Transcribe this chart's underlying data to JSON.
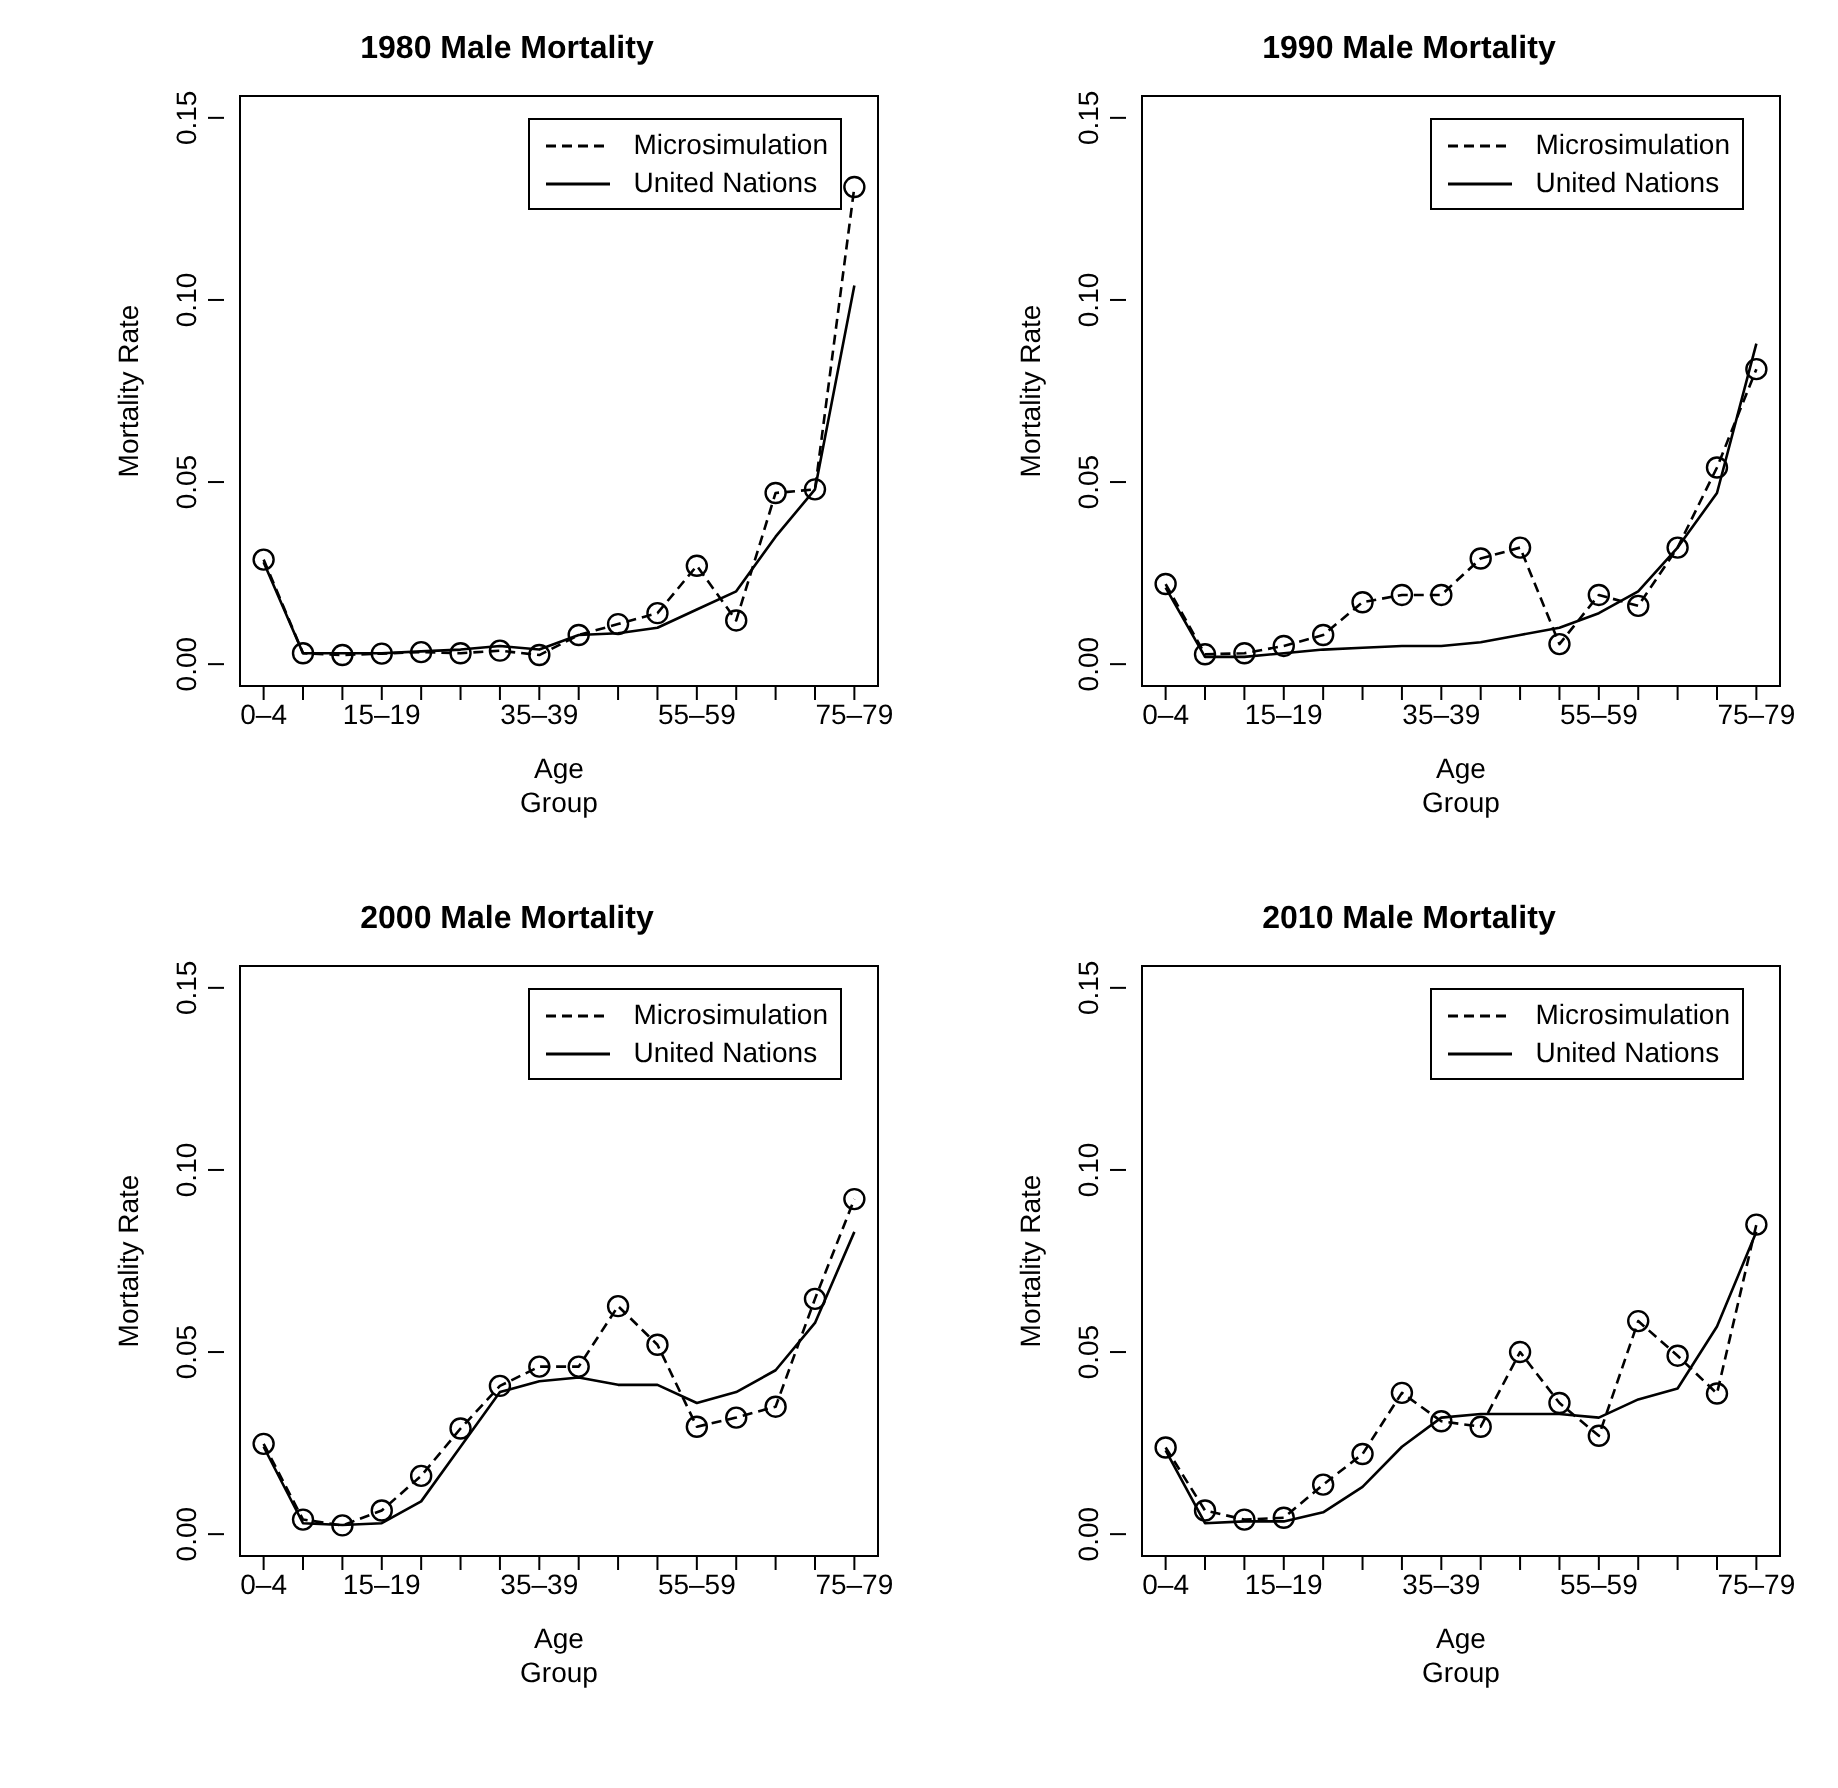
{
  "chart_data": [
    {
      "type": "line",
      "title": "1980 Male Mortality",
      "xlabel": "Age\nGroup",
      "ylabel": "Mortality Rate",
      "categories": [
        "0–4",
        null,
        null,
        "15–19",
        null,
        null,
        null,
        "35–39",
        null,
        null,
        null,
        "55–59",
        null,
        null,
        null,
        "75–79"
      ],
      "ylim": [
        -0.006,
        0.156
      ],
      "yticks": [
        {
          "value": 0,
          "label": "0.00"
        },
        {
          "value": 0.05,
          "label": "0.05"
        },
        {
          "value": 0.1,
          "label": "0.10"
        },
        {
          "value": 0.15,
          "label": "0.15"
        }
      ],
      "legend": "top right",
      "series": [
        {
          "name": "Microsimulation",
          "color": "#000000",
          "line_style": "dashed",
          "marker": "circle",
          "values": [
            0.0287,
            0.003,
            0.0025,
            0.0029,
            0.0033,
            0.003,
            0.0037,
            0.0025,
            0.008,
            0.011,
            0.014,
            0.027,
            0.012,
            0.047,
            0.048,
            0.131
          ]
        },
        {
          "name": "United Nations",
          "color": "#000000",
          "line_style": "solid",
          "marker": "none",
          "values": [
            0.028,
            0.003,
            0.003,
            0.003,
            0.0035,
            0.004,
            0.005,
            0.004,
            0.008,
            0.0085,
            0.01,
            0.015,
            0.02,
            0.035,
            0.048,
            0.104
          ]
        }
      ]
    },
    {
      "type": "line",
      "title": "1990 Male Mortality",
      "xlabel": "Age\nGroup",
      "ylabel": "Mortality Rate",
      "categories": [
        "0–4",
        null,
        null,
        "15–19",
        null,
        null,
        null,
        "35–39",
        null,
        null,
        null,
        "55–59",
        null,
        null,
        null,
        "75–79"
      ],
      "ylim": [
        -0.006,
        0.156
      ],
      "yticks": [
        {
          "value": 0,
          "label": "0.00"
        },
        {
          "value": 0.05,
          "label": "0.05"
        },
        {
          "value": 0.1,
          "label": "0.10"
        },
        {
          "value": 0.15,
          "label": "0.15"
        }
      ],
      "legend": "top right",
      "series": [
        {
          "name": "Microsimulation",
          "color": "#000000",
          "line_style": "dashed",
          "marker": "circle",
          "values": [
            0.022,
            0.0027,
            0.003,
            0.005,
            0.008,
            0.017,
            0.019,
            0.019,
            0.029,
            0.032,
            0.0055,
            0.019,
            0.016,
            0.032,
            0.054,
            0.081
          ]
        },
        {
          "name": "United Nations",
          "color": "#000000",
          "line_style": "solid",
          "marker": "none",
          "values": [
            0.021,
            0.002,
            0.002,
            0.003,
            0.004,
            0.0045,
            0.005,
            0.005,
            0.006,
            0.008,
            0.01,
            0.014,
            0.02,
            0.032,
            0.047,
            0.088
          ]
        }
      ]
    },
    {
      "type": "line",
      "title": "2000 Male Mortality",
      "xlabel": "Age\nGroup",
      "ylabel": "Mortality Rate",
      "categories": [
        "0–4",
        null,
        null,
        "15–19",
        null,
        null,
        null,
        "35–39",
        null,
        null,
        null,
        "55–59",
        null,
        null,
        null,
        "75–79"
      ],
      "ylim": [
        -0.006,
        0.156
      ],
      "yticks": [
        {
          "value": 0,
          "label": "0.00"
        },
        {
          "value": 0.05,
          "label": "0.05"
        },
        {
          "value": 0.1,
          "label": "0.10"
        },
        {
          "value": 0.15,
          "label": "0.15"
        }
      ],
      "legend": "top right",
      "series": [
        {
          "name": "Microsimulation",
          "color": "#000000",
          "line_style": "dashed",
          "marker": "circle",
          "values": [
            0.0248,
            0.004,
            0.0024,
            0.0065,
            0.016,
            0.029,
            0.0407,
            0.046,
            0.046,
            0.0626,
            0.052,
            0.0295,
            0.032,
            0.035,
            0.0646,
            0.092
          ]
        },
        {
          "name": "United Nations",
          "color": "#000000",
          "line_style": "solid",
          "marker": "none",
          "values": [
            0.024,
            0.003,
            0.0025,
            0.003,
            0.009,
            0.024,
            0.039,
            0.042,
            0.043,
            0.041,
            0.041,
            0.036,
            0.039,
            0.045,
            0.058,
            0.083
          ]
        }
      ]
    },
    {
      "type": "line",
      "title": "2010 Male Mortality",
      "xlabel": "Age\nGroup",
      "ylabel": "Mortality Rate",
      "categories": [
        "0–4",
        null,
        null,
        "15–19",
        null,
        null,
        null,
        "35–39",
        null,
        null,
        null,
        "55–59",
        null,
        null,
        null,
        "75–79"
      ],
      "ylim": [
        -0.006,
        0.156
      ],
      "yticks": [
        {
          "value": 0,
          "label": "0.00"
        },
        {
          "value": 0.05,
          "label": "0.05"
        },
        {
          "value": 0.1,
          "label": "0.10"
        },
        {
          "value": 0.15,
          "label": "0.15"
        }
      ],
      "legend": "top right",
      "series": [
        {
          "name": "Microsimulation",
          "color": "#000000",
          "line_style": "dashed",
          "marker": "circle",
          "values": [
            0.0238,
            0.0065,
            0.004,
            0.0045,
            0.0136,
            0.022,
            0.0388,
            0.031,
            0.0295,
            0.05,
            0.036,
            0.027,
            0.0585,
            0.049,
            0.0386,
            0.085
          ]
        },
        {
          "name": "United Nations",
          "color": "#000000",
          "line_style": "solid",
          "marker": "none",
          "values": [
            0.023,
            0.003,
            0.0035,
            0.0035,
            0.006,
            0.013,
            0.024,
            0.032,
            0.033,
            0.033,
            0.033,
            0.032,
            0.037,
            0.04,
            0.057,
            0.083
          ]
        }
      ]
    }
  ]
}
